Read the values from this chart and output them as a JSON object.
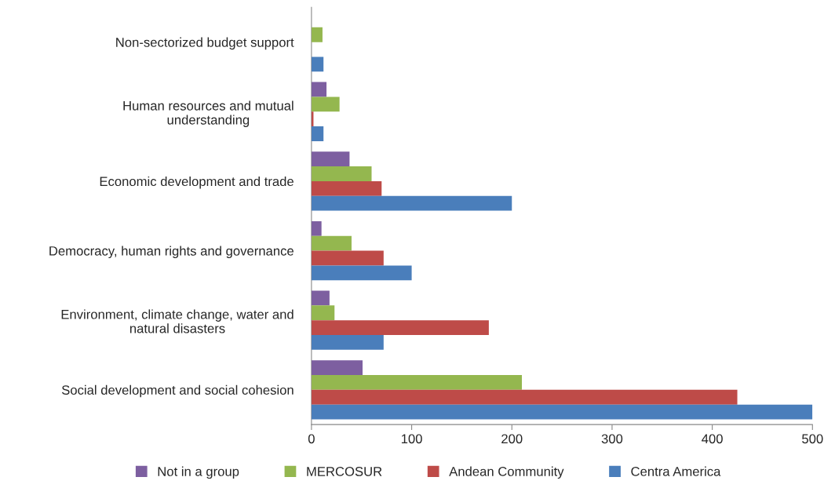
{
  "chart_data": {
    "type": "bar",
    "orientation": "horizontal",
    "categories": [
      "Non-sectorized budget support",
      "Human resources and mutual\nunderstanding",
      "Economic development and trade",
      "Democracy, human rights and governance",
      "Environment, climate change, water and\nnatural disasters",
      "Social development and social cohesion"
    ],
    "series": [
      {
        "name": "Not in a group",
        "color": "#7d5fa0",
        "values": [
          0,
          15,
          38,
          10,
          18,
          51
        ]
      },
      {
        "name": "MERCOSUR",
        "color": "#94b74f",
        "values": [
          11,
          28,
          60,
          40,
          23,
          210
        ]
      },
      {
        "name": "Andean Community",
        "color": "#be4b48",
        "values": [
          0,
          2,
          70,
          72,
          177,
          425
        ]
      },
      {
        "name": "Centra America",
        "color": "#4a7ebb",
        "values": [
          12,
          12,
          200,
          100,
          72,
          500
        ]
      }
    ],
    "xlim": [
      0,
      500
    ],
    "xticks": [
      0,
      100,
      200,
      300,
      400,
      500
    ],
    "grid": false,
    "legend": "bottom"
  }
}
